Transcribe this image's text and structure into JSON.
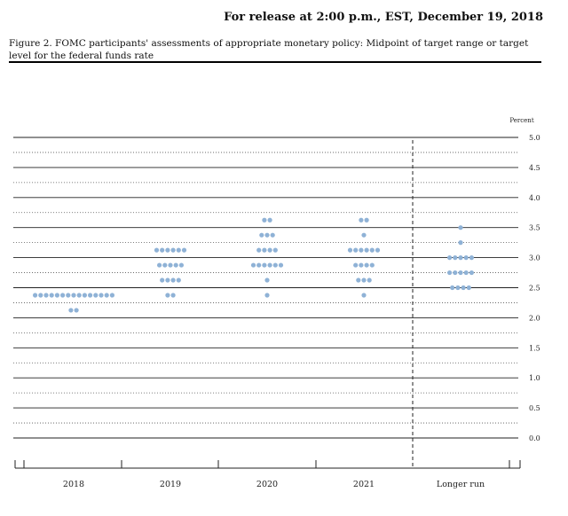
{
  "header": {
    "release": "For release at 2:00 p.m., EST, December 19, 2018",
    "figure_caption": "Figure 2. FOMC participants' assessments of appropriate monetary policy: Midpoint of target range or target level for the federal funds rate"
  },
  "chart_data": {
    "type": "scatter",
    "title": "Figure 2. FOMC participants' assessments of appropriate monetary policy: Midpoint of target range or target level for the federal funds rate",
    "ylabel": "Percent",
    "ylim": [
      0,
      5.0
    ],
    "yticks": [
      "5.0",
      "4.5",
      "4.0",
      "3.5",
      "3.0",
      "2.5",
      "2.0",
      "1.5",
      "1.0",
      "0.5",
      "0.0"
    ],
    "categories": [
      "2018",
      "2019",
      "2020",
      "2021",
      "Longer run"
    ],
    "grid": true,
    "marker_color": "#8fb2d6",
    "groups": [
      {
        "category": "2018",
        "points": [
          {
            "y": 2.375,
            "count": 15
          },
          {
            "y": 2.125,
            "count": 2
          }
        ]
      },
      {
        "category": "2019",
        "points": [
          {
            "y": 3.125,
            "count": 6
          },
          {
            "y": 2.875,
            "count": 5
          },
          {
            "y": 2.625,
            "count": 4
          },
          {
            "y": 2.375,
            "count": 2
          }
        ]
      },
      {
        "category": "2020",
        "points": [
          {
            "y": 3.625,
            "count": 2
          },
          {
            "y": 3.375,
            "count": 3
          },
          {
            "y": 3.125,
            "count": 4
          },
          {
            "y": 2.875,
            "count": 6
          },
          {
            "y": 2.625,
            "count": 1
          },
          {
            "y": 2.375,
            "count": 1
          }
        ]
      },
      {
        "category": "2021",
        "points": [
          {
            "y": 3.625,
            "count": 2
          },
          {
            "y": 3.375,
            "count": 1
          },
          {
            "y": 3.125,
            "count": 6
          },
          {
            "y": 2.875,
            "count": 4
          },
          {
            "y": 2.625,
            "count": 3
          },
          {
            "y": 2.375,
            "count": 1
          }
        ]
      },
      {
        "category": "Longer run",
        "points": [
          {
            "y": 3.5,
            "count": 1
          },
          {
            "y": 3.25,
            "count": 1
          },
          {
            "y": 3.0,
            "count": 5
          },
          {
            "y": 2.75,
            "count": 5
          },
          {
            "y": 2.5,
            "count": 4
          }
        ]
      }
    ]
  }
}
